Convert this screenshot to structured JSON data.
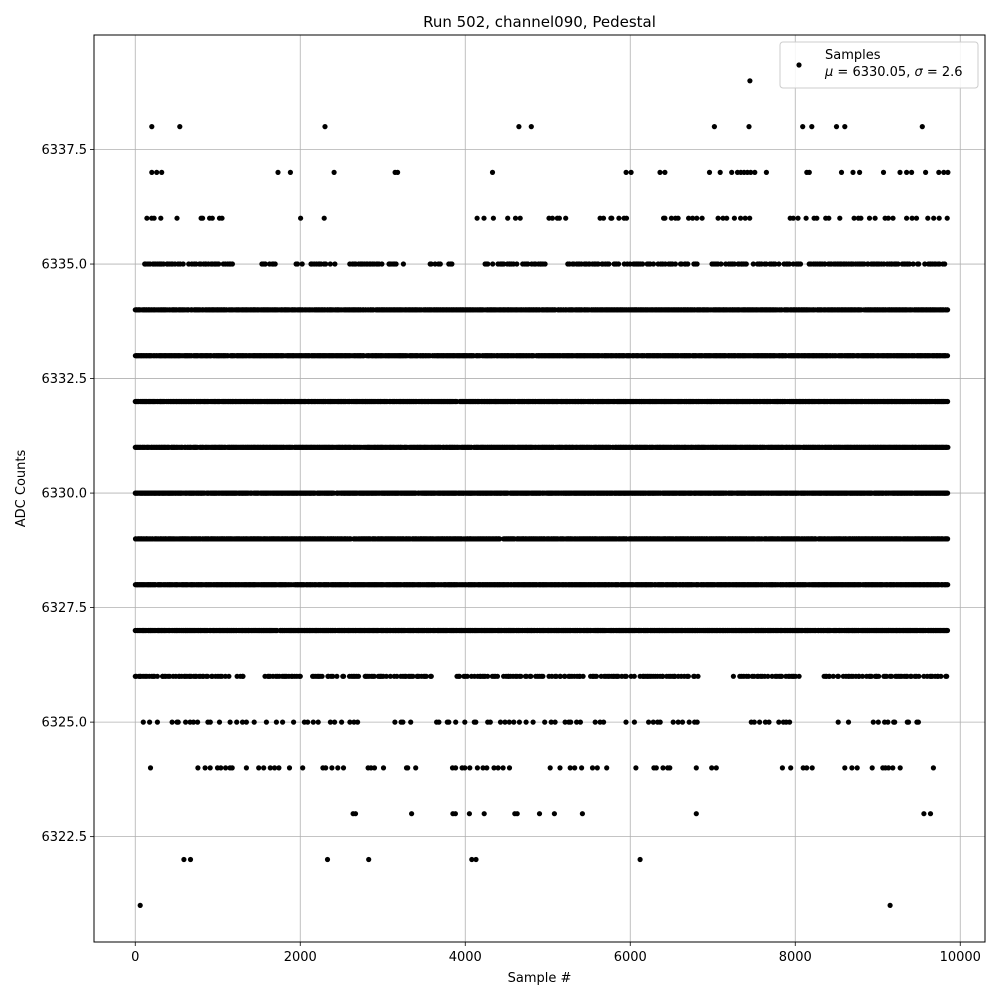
{
  "chart_data": {
    "type": "scatter",
    "title": "Run 502, channel090, Pedestal",
    "xlabel": "Sample #",
    "ylabel": "ADC Counts",
    "xlim": [
      -500,
      10300
    ],
    "ylim": [
      6320.2,
      6340.0
    ],
    "xticks": [
      0,
      2000,
      4000,
      6000,
      8000,
      10000
    ],
    "xtick_labels": [
      "0",
      "2000",
      "4000",
      "6000",
      "8000",
      "10000"
    ],
    "yticks": [
      6322.5,
      6325.0,
      6327.5,
      6330.0,
      6332.5,
      6335.0,
      6337.5
    ],
    "ytick_labels": [
      "6322.5",
      "6325.0",
      "6327.5",
      "6330.0",
      "6332.5",
      "6335.0",
      "6337.5"
    ],
    "grid": true,
    "legend_position": "top-right",
    "legend": {
      "name": "Samples",
      "stats": "μ = 6330.05, σ = 2.6",
      "stats_mu": "μ",
      "stats_mu_value": " = 6330.05, ",
      "stats_sigma": "σ",
      "stats_sigma_value": " = 2.6"
    },
    "series": [
      {
        "name": "Samples",
        "color": "#000000",
        "sample_count": 9850,
        "points": [
          [
            60,
            6321
          ],
          [
            9150,
            6321
          ],
          [
            590,
            6322
          ],
          [
            670,
            6322
          ],
          [
            2330,
            6322
          ],
          [
            2830,
            6322
          ],
          [
            4080,
            6322
          ],
          [
            4130,
            6322
          ],
          [
            6120,
            6322
          ],
          [
            2640,
            6323
          ],
          [
            2670,
            6323
          ],
          [
            3350,
            6323
          ],
          [
            3850,
            6323
          ],
          [
            3880,
            6323
          ],
          [
            4050,
            6323
          ],
          [
            4230,
            6323
          ],
          [
            4600,
            6323
          ],
          [
            4630,
            6323
          ],
          [
            4900,
            6323
          ],
          [
            5080,
            6323
          ],
          [
            5420,
            6323
          ],
          [
            6800,
            6323
          ],
          [
            9560,
            6323
          ],
          [
            9640,
            6323
          ],
          [
            7450,
            6339
          ],
          [
            200,
            6338
          ],
          [
            540,
            6338
          ],
          [
            2300,
            6338
          ],
          [
            4650,
            6338
          ],
          [
            4800,
            6338
          ],
          [
            7020,
            6338
          ],
          [
            7440,
            6338
          ],
          [
            8090,
            6338
          ],
          [
            8200,
            6338
          ],
          [
            8500,
            6338
          ],
          [
            8600,
            6338
          ],
          [
            9540,
            6338
          ],
          [
            200,
            6337
          ],
          [
            260,
            6337
          ],
          [
            320,
            6337
          ],
          [
            1730,
            6337
          ],
          [
            1880,
            6337
          ],
          [
            2410,
            6337
          ],
          [
            3150,
            6337
          ],
          [
            3180,
            6337
          ],
          [
            4330,
            6337
          ],
          [
            5950,
            6337
          ],
          [
            6010,
            6337
          ],
          [
            6360,
            6337
          ],
          [
            6420,
            6337
          ],
          [
            6960,
            6337
          ],
          [
            7090,
            6337
          ],
          [
            7230,
            6337
          ],
          [
            7300,
            6337
          ],
          [
            7340,
            6337
          ],
          [
            7380,
            6337
          ],
          [
            7420,
            6337
          ],
          [
            7460,
            6337
          ],
          [
            7510,
            6337
          ],
          [
            7650,
            6337
          ],
          [
            8140,
            6337
          ],
          [
            8170,
            6337
          ],
          [
            8560,
            6337
          ],
          [
            8700,
            6337
          ],
          [
            8780,
            6337
          ],
          [
            9070,
            6337
          ],
          [
            9270,
            6337
          ],
          [
            9350,
            6337
          ],
          [
            9410,
            6337
          ],
          [
            9580,
            6337
          ],
          [
            9740,
            6337
          ],
          [
            9800,
            6337
          ],
          [
            9850,
            6337
          ]
        ],
        "level_rows": [
          {
            "y": 6336,
            "coverage": [
              [
                80,
                560
              ],
              [
                780,
                1100
              ],
              [
                1900,
                2020
              ],
              [
                2280,
                2300
              ],
              [
                4120,
                5220
              ],
              [
                5580,
                5980
              ],
              [
                6380,
                6880
              ],
              [
                7000,
                7560
              ],
              [
                7930,
                9200
              ],
              [
                9350,
                9850
              ]
            ],
            "density": "sparse"
          },
          {
            "y": 6335,
            "coverage": [
              [
                90,
                1200
              ],
              [
                1530,
                1730
              ],
              [
                1950,
                2420
              ],
              [
                2600,
                3250
              ],
              [
                3570,
                3850
              ],
              [
                4240,
                5000
              ],
              [
                5240,
                6900
              ],
              [
                6980,
                9850
              ]
            ],
            "density": "medium"
          },
          {
            "y": 6334,
            "coverage": [
              [
                0,
                9850
              ]
            ],
            "density": "dense"
          },
          {
            "y": 6333,
            "coverage": [
              [
                0,
                9850
              ]
            ],
            "density": "dense"
          },
          {
            "y": 6332,
            "coverage": [
              [
                0,
                9850
              ]
            ],
            "density": "dense"
          },
          {
            "y": 6331,
            "coverage": [
              [
                0,
                9850
              ]
            ],
            "density": "dense"
          },
          {
            "y": 6330,
            "coverage": [
              [
                0,
                9850
              ]
            ],
            "density": "dense"
          },
          {
            "y": 6329,
            "coverage": [
              [
                0,
                9850
              ]
            ],
            "density": "dense"
          },
          {
            "y": 6328,
            "coverage": [
              [
                0,
                9850
              ]
            ],
            "density": "dense"
          },
          {
            "y": 6327,
            "coverage": [
              [
                0,
                9850
              ]
            ],
            "density": "dense"
          },
          {
            "y": 6326,
            "coverage": [
              [
                0,
                1350
              ],
              [
                1550,
                2000
              ],
              [
                2150,
                3600
              ],
              [
                3900,
                6850
              ],
              [
                7250,
                8050
              ],
              [
                8350,
                9850
              ]
            ],
            "density": "medium"
          },
          {
            "y": 6325,
            "coverage": [
              [
                50,
                2000
              ],
              [
                2050,
                3400
              ],
              [
                3650,
                5700
              ],
              [
                5900,
                6000
              ],
              [
                6050,
                6850
              ],
              [
                7450,
                7950
              ],
              [
                8300,
                8700
              ],
              [
                8900,
                9600
              ]
            ],
            "density": "sparse"
          },
          {
            "y": 6324,
            "coverage": [
              [
                180,
                190
              ],
              [
                760,
                1200
              ],
              [
                1300,
                1900
              ],
              [
                2030,
                3050
              ],
              [
                3270,
                3500
              ],
              [
                3830,
                4650
              ],
              [
                5030,
                5900
              ],
              [
                6060,
                6500
              ],
              [
                6800,
                7100
              ],
              [
                7830,
                8250
              ],
              [
                8600,
                9300
              ],
              [
                9650,
                9700
              ]
            ],
            "density": "sparse"
          }
        ]
      }
    ]
  }
}
